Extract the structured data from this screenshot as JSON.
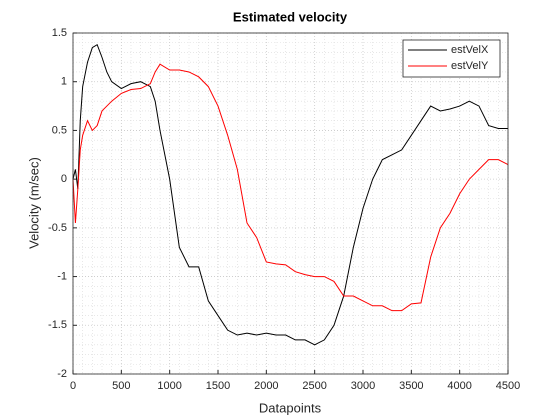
{
  "chart_data": {
    "type": "line",
    "title": "Estimated velocity",
    "xlabel": "Datapoints",
    "ylabel": "Velocity (m/sec)",
    "x": [
      0,
      25,
      50,
      75,
      100,
      150,
      200,
      250,
      300,
      350,
      400,
      500,
      600,
      700,
      800,
      850,
      900,
      1000,
      1100,
      1200,
      1300,
      1400,
      1500,
      1600,
      1700,
      1800,
      1900,
      2000,
      2100,
      2200,
      2300,
      2400,
      2500,
      2600,
      2700,
      2800,
      2900,
      3000,
      3100,
      3200,
      3300,
      3400,
      3500,
      3600,
      3700,
      3800,
      3900,
      4000,
      4100,
      4200,
      4300,
      4400,
      4500
    ],
    "series": [
      {
        "name": "estVelX",
        "color": "#000000",
        "values": [
          0,
          0.1,
          -0.1,
          0.6,
          0.95,
          1.2,
          1.35,
          1.38,
          1.25,
          1.1,
          1.0,
          0.93,
          0.98,
          1.0,
          0.95,
          0.8,
          0.5,
          0,
          -0.7,
          -0.9,
          -0.9,
          -1.25,
          -1.4,
          -1.55,
          -1.6,
          -1.58,
          -1.6,
          -1.58,
          -1.6,
          -1.6,
          -1.65,
          -1.65,
          -1.7,
          -1.65,
          -1.5,
          -1.2,
          -0.7,
          -0.3,
          0,
          0.2,
          0.25,
          0.3,
          0.45,
          0.6,
          0.75,
          0.7,
          0.72,
          0.75,
          0.8,
          0.75,
          0.55,
          0.52,
          0.52
        ]
      },
      {
        "name": "estVelY",
        "color": "#ff0000",
        "values": [
          0,
          -0.45,
          -0.1,
          0.3,
          0.45,
          0.6,
          0.5,
          0.55,
          0.7,
          0.75,
          0.8,
          0.88,
          0.92,
          0.93,
          0.98,
          1.1,
          1.18,
          1.12,
          1.12,
          1.1,
          1.05,
          0.95,
          0.75,
          0.45,
          0.1,
          -0.45,
          -0.6,
          -0.85,
          -0.87,
          -0.88,
          -0.95,
          -0.98,
          -1.0,
          -1.0,
          -1.05,
          -1.2,
          -1.2,
          -1.25,
          -1.3,
          -1.3,
          -1.35,
          -1.35,
          -1.28,
          -1.27,
          -0.8,
          -0.5,
          -0.35,
          -0.15,
          0,
          0.1,
          0.2,
          0.2,
          0.15
        ]
      }
    ],
    "xlim": [
      0,
      4500
    ],
    "xticks": [
      0,
      500,
      1000,
      1500,
      2000,
      2500,
      3000,
      3500,
      4000,
      4500
    ],
    "ylim": [
      -2,
      1.5
    ],
    "yticks": [
      -2,
      -1.5,
      -1,
      -0.5,
      0,
      0.5,
      1,
      1.5
    ],
    "grid": true,
    "minor_grid": true,
    "legend": "northeast"
  }
}
